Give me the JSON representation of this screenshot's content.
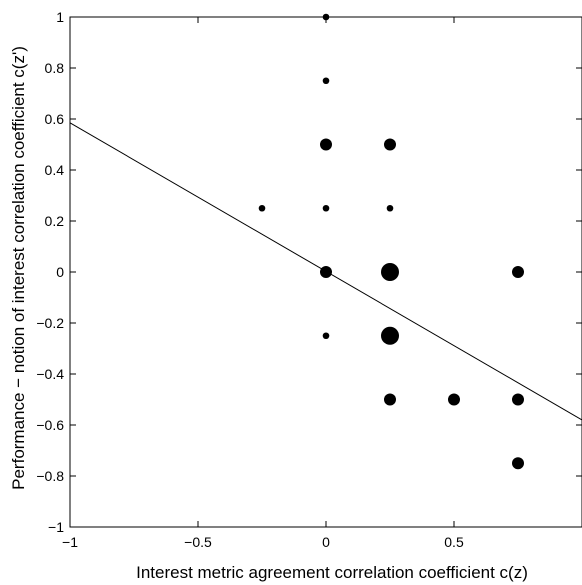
{
  "chart_data": {
    "type": "scatter",
    "title": "",
    "xlabel": "Interest metric agreement correlation coefficient c(z)",
    "ylabel": "Performance − notion of interest correlation coefficient c(z')",
    "xlim": [
      -1,
      1
    ],
    "ylim": [
      -1,
      1
    ],
    "grid": false,
    "x_ticks": [
      -1,
      -0.5,
      0,
      0.5
    ],
    "x_tick_labels": [
      "−1",
      "−0.5",
      "0",
      "0.5"
    ],
    "y_ticks": [
      1,
      0.8,
      0.6,
      0.4,
      0.2,
      0,
      -0.2,
      -0.4,
      -0.6,
      -0.8,
      -1
    ],
    "y_tick_labels": [
      "1",
      "0.8",
      "0.6",
      "0.4",
      "0.2",
      "0",
      "−0.2",
      "−0.4",
      "−0.6",
      "−0.8",
      "−1"
    ],
    "points": [
      {
        "x": 0,
        "y": 1,
        "count": 1
      },
      {
        "x": 0,
        "y": 0.75,
        "count": 1
      },
      {
        "x": 0,
        "y": 0.5,
        "count": 2
      },
      {
        "x": 0.25,
        "y": 0.5,
        "count": 2
      },
      {
        "x": -0.25,
        "y": 0.25,
        "count": 1
      },
      {
        "x": 0,
        "y": 0.25,
        "count": 1
      },
      {
        "x": 0.25,
        "y": 0.25,
        "count": 1
      },
      {
        "x": 0,
        "y": 0,
        "count": 2
      },
      {
        "x": 0.25,
        "y": 0,
        "count": 3
      },
      {
        "x": 0.75,
        "y": 0,
        "count": 2
      },
      {
        "x": 0,
        "y": -0.25,
        "count": 1
      },
      {
        "x": 0.25,
        "y": -0.25,
        "count": 3
      },
      {
        "x": 0.25,
        "y": -0.5,
        "count": 2
      },
      {
        "x": 0.5,
        "y": -0.5,
        "count": 2
      },
      {
        "x": 0.75,
        "y": -0.5,
        "count": 2
      },
      {
        "x": 0.75,
        "y": -0.75,
        "count": 2
      }
    ],
    "regression_line": [
      {
        "x": -1,
        "y": 0.585
      },
      {
        "x": 1,
        "y": -0.58
      }
    ],
    "colors": {
      "marker": "#000000",
      "line": "#000000",
      "axes": "#000000",
      "background": "#ffffff"
    }
  }
}
